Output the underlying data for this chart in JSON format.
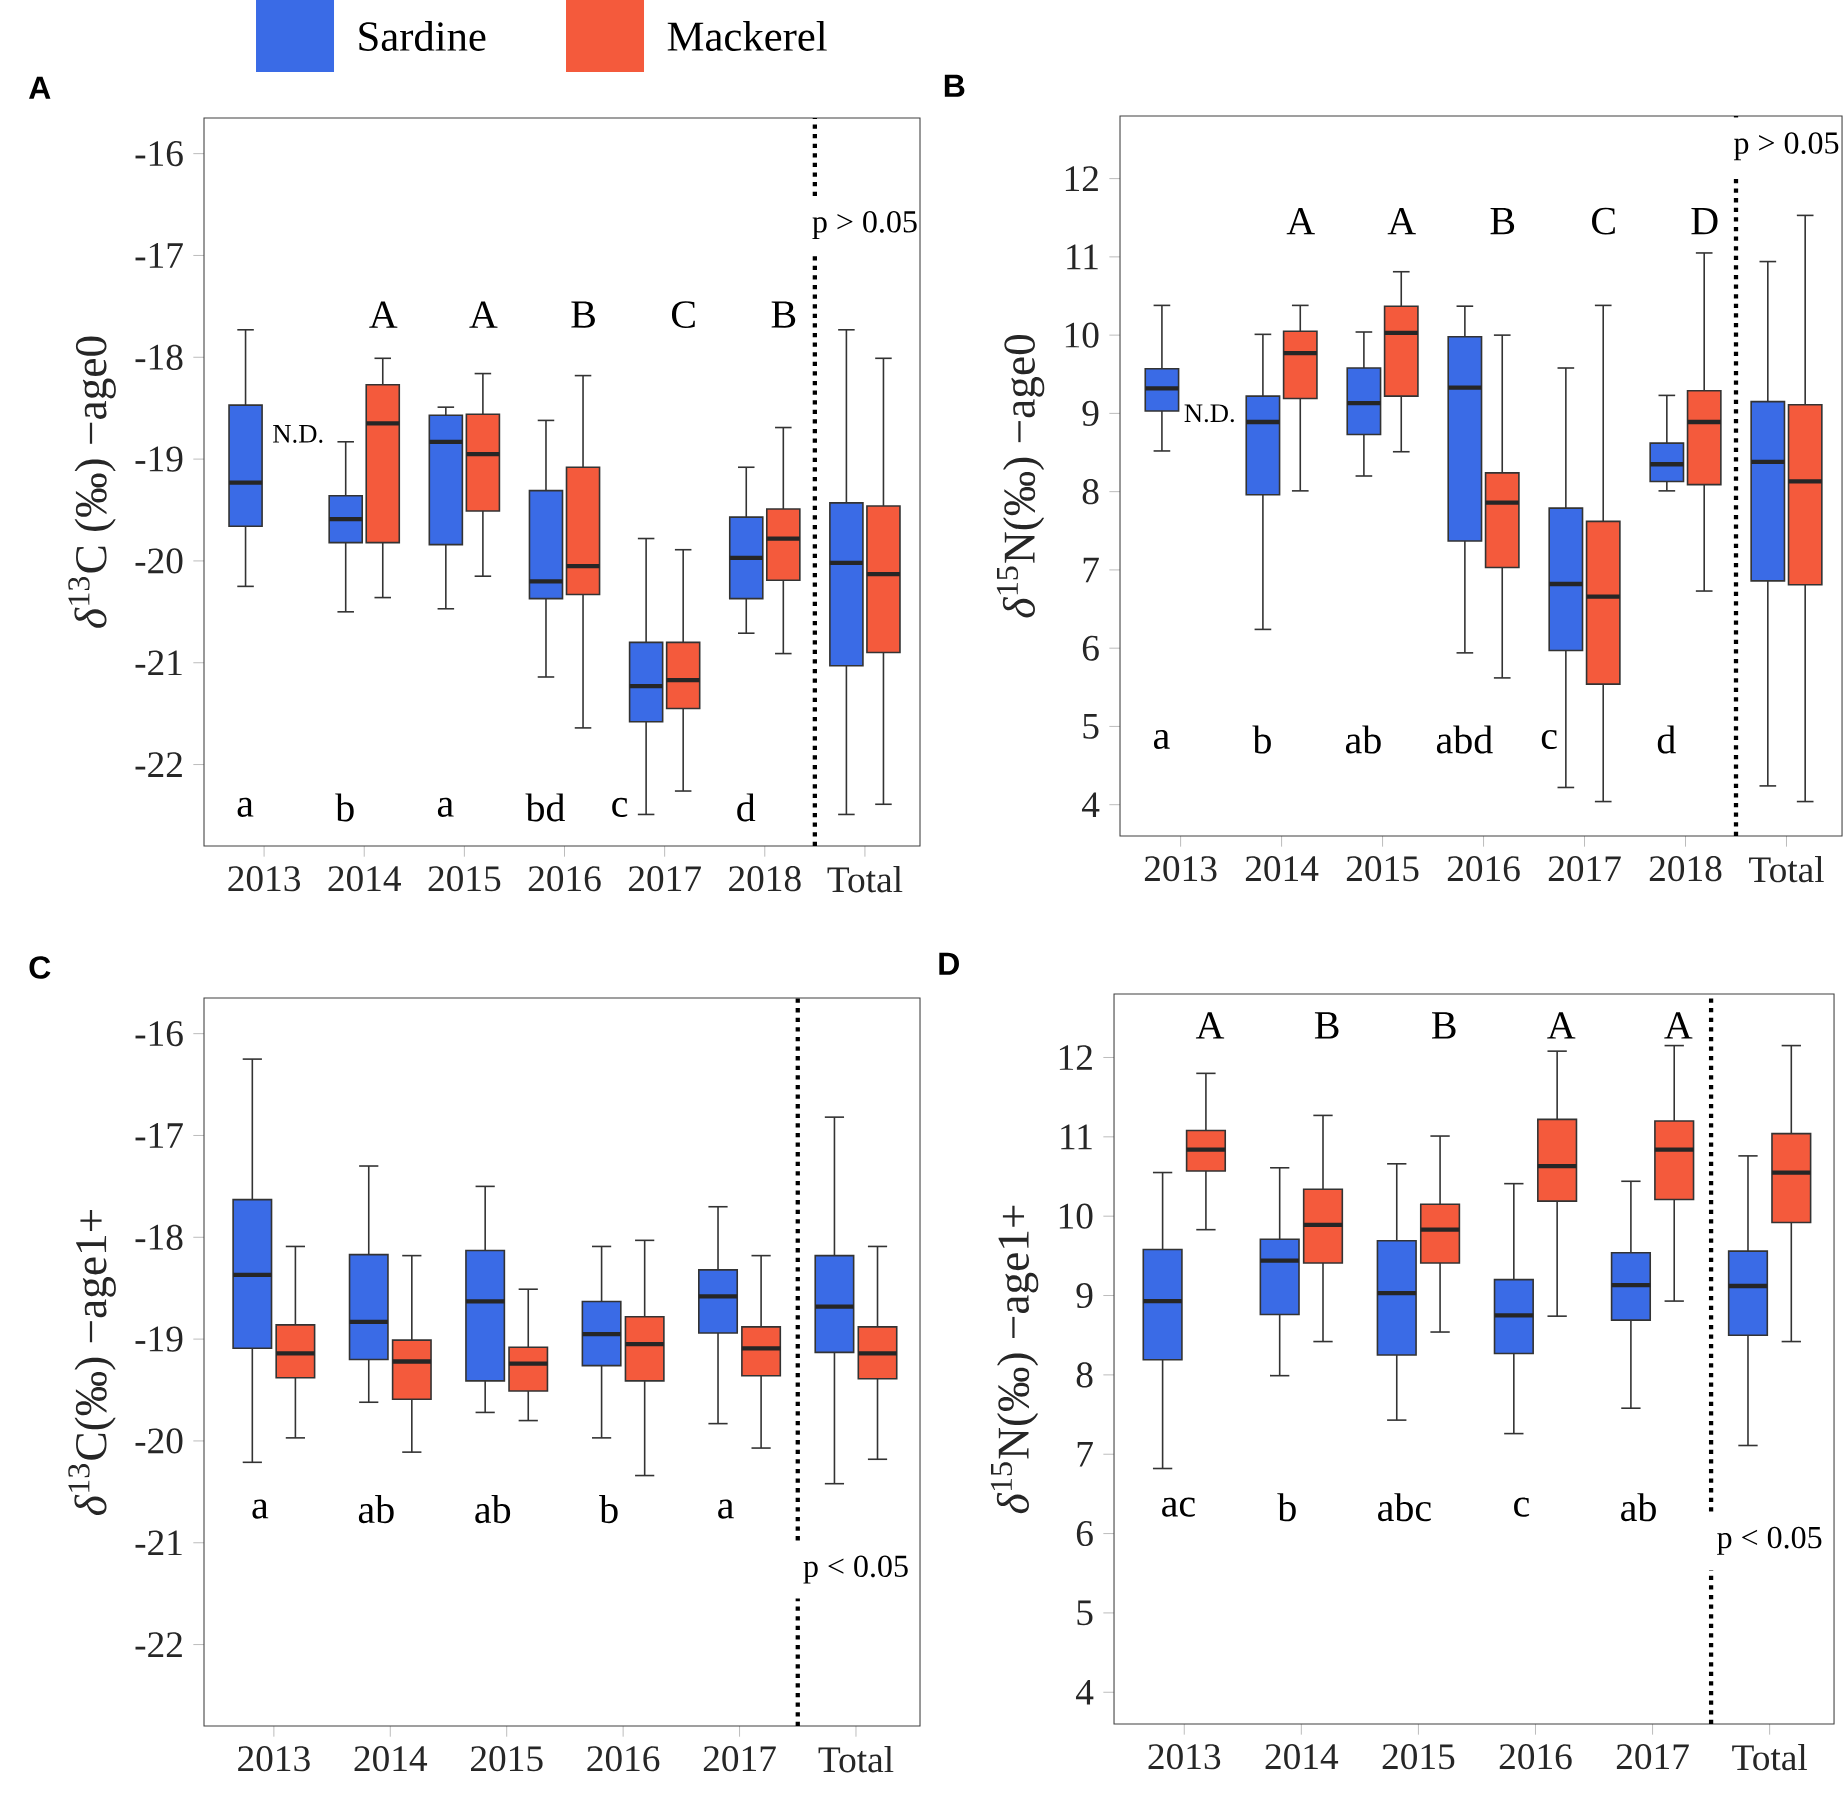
{
  "chart_data": [
    {
      "type": "box",
      "title": "A",
      "ylabel": "*δ*$^{13}$C (‰) −age0",
      "legend": "top",
      "categories": [
        "2013",
        "2014",
        "2015",
        "2016",
        "2017",
        "2018",
        "Total"
      ],
      "ylim": [
        -22.8,
        -15.65
      ],
      "yticks": [
        -16,
        -17,
        -18,
        -19,
        -20,
        -21,
        -22
      ],
      "series": [
        {
          "name": "Sardine",
          "color": "#3a6be6",
          "boxes": [
            {
              "low": -20.25,
              "q1": -19.66,
              "median": -19.23,
              "q3": -18.47,
              "high": -17.73
            },
            {
              "low": -20.5,
              "q1": -19.82,
              "median": -19.59,
              "q3": -19.36,
              "high": -18.83
            },
            {
              "low": -20.47,
              "q1": -19.84,
              "median": -18.83,
              "q3": -18.57,
              "high": -18.49
            },
            {
              "low": -21.14,
              "q1": -20.37,
              "median": -20.2,
              "q3": -19.31,
              "high": -18.62
            },
            {
              "low": -22.49,
              "q1": -21.58,
              "median": -21.23,
              "q3": -20.8,
              "high": -19.78
            },
            {
              "low": -20.71,
              "q1": -20.37,
              "median": -19.97,
              "q3": -19.57,
              "high": -19.08
            },
            {
              "low": -22.49,
              "q1": -21.03,
              "median": -20.02,
              "q3": -19.43,
              "high": -17.73
            }
          ]
        },
        {
          "name": "Mackerel",
          "color": "#f45a3c",
          "boxes": [
            null,
            {
              "low": -20.36,
              "q1": -19.82,
              "median": -18.65,
              "q3": -18.27,
              "high": -18.01
            },
            {
              "low": -20.15,
              "q1": -19.51,
              "median": -18.95,
              "q3": -18.56,
              "high": -18.16
            },
            {
              "low": -21.64,
              "q1": -20.33,
              "median": -20.05,
              "q3": -19.08,
              "high": -18.18
            },
            {
              "low": -22.26,
              "q1": -21.45,
              "median": -21.17,
              "q3": -20.8,
              "high": -19.89
            },
            {
              "low": -20.91,
              "q1": -20.19,
              "median": -19.78,
              "q3": -19.49,
              "high": -18.69
            },
            {
              "low": -22.39,
              "q1": -20.9,
              "median": -20.13,
              "q3": -19.46,
              "high": -18.01
            }
          ]
        }
      ],
      "annotations": [
        "N.D.",
        "A",
        "A",
        "B",
        "C",
        "B",
        "a",
        "b",
        "a",
        "bd",
        "c",
        "d",
        "p > 0.05"
      ]
    },
    {
      "type": "box",
      "title": "B",
      "ylabel": "*δ*$^{15}$N(‰) −age0",
      "categories": [
        "2013",
        "2014",
        "2015",
        "2016",
        "2017",
        "2018",
        "Total"
      ],
      "ylim": [
        3.6,
        12.8
      ],
      "yticks": [
        4,
        5,
        6,
        7,
        8,
        9,
        10,
        11,
        12
      ],
      "series": [
        {
          "color": "#3a6be6",
          "boxes": [
            {
              "low": 8.52,
              "q1": 9.03,
              "median": 9.32,
              "q3": 9.57,
              "high": 10.38
            },
            {
              "low": 6.24,
              "q1": 7.96,
              "median": 8.89,
              "q3": 9.22,
              "high": 10.01
            },
            {
              "low": 8.2,
              "q1": 8.73,
              "median": 9.13,
              "q3": 9.58,
              "high": 10.04
            },
            {
              "low": 5.94,
              "q1": 7.37,
              "median": 9.33,
              "q3": 9.98,
              "high": 10.37
            },
            {
              "low": 4.22,
              "q1": 5.97,
              "median": 6.82,
              "q3": 7.79,
              "high": 9.58
            },
            {
              "low": 8.01,
              "q1": 8.13,
              "median": 8.35,
              "q3": 8.62,
              "high": 9.23
            },
            {
              "low": 4.24,
              "q1": 6.86,
              "median": 8.38,
              "q3": 9.15,
              "high": 10.94
            }
          ]
        },
        {
          "color": "#f45a3c",
          "boxes": [
            null,
            {
              "low": 8.01,
              "q1": 9.19,
              "median": 9.77,
              "q3": 10.05,
              "high": 10.38
            },
            {
              "low": 8.51,
              "q1": 9.22,
              "median": 10.03,
              "q3": 10.37,
              "high": 10.81
            },
            {
              "low": 5.62,
              "q1": 7.03,
              "median": 7.86,
              "q3": 8.24,
              "high": 10.0
            },
            {
              "low": 4.04,
              "q1": 5.54,
              "median": 6.66,
              "q3": 7.62,
              "high": 10.38
            },
            {
              "low": 6.73,
              "q1": 8.09,
              "median": 8.89,
              "q3": 9.29,
              "high": 11.05
            },
            {
              "low": 4.04,
              "q1": 6.81,
              "median": 8.13,
              "q3": 9.11,
              "high": 11.53
            }
          ]
        }
      ],
      "annotations": [
        "N.D.",
        "A",
        "A",
        "B",
        "C",
        "D",
        "a",
        "b",
        "ab",
        "abd",
        "c",
        "d",
        "p > 0.05"
      ]
    },
    {
      "type": "box",
      "title": "C",
      "ylabel": "*δ*$^{13}$C(‰) −age1+",
      "categories": [
        "2013",
        "2014",
        "2015",
        "2016",
        "2017",
        "Total"
      ],
      "ylim": [
        -22.8,
        -15.65
      ],
      "yticks": [
        -16,
        -17,
        -18,
        -19,
        -20,
        -21,
        -22
      ],
      "series": [
        {
          "color": "#3a6be6",
          "boxes": [
            {
              "low": -20.21,
              "q1": -19.09,
              "median": -18.37,
              "q3": -17.63,
              "high": -16.25
            },
            {
              "low": -19.62,
              "q1": -19.2,
              "median": -18.83,
              "q3": -18.17,
              "high": -17.3
            },
            {
              "low": -19.72,
              "q1": -19.41,
              "median": -18.63,
              "q3": -18.13,
              "high": -17.5
            },
            {
              "low": -19.97,
              "q1": -19.26,
              "median": -18.95,
              "q3": -18.63,
              "high": -18.09
            },
            {
              "low": -19.83,
              "q1": -18.94,
              "median": -18.58,
              "q3": -18.32,
              "high": -17.7
            },
            {
              "low": -20.42,
              "q1": -19.13,
              "median": -18.68,
              "q3": -18.18,
              "high": -16.82
            }
          ]
        },
        {
          "color": "#f45a3c",
          "boxes": [
            {
              "low": -19.97,
              "q1": -19.38,
              "median": -19.14,
              "q3": -18.86,
              "high": -18.09
            },
            {
              "low": -20.11,
              "q1": -19.59,
              "median": -19.22,
              "q3": -19.01,
              "high": -18.18
            },
            {
              "low": -19.8,
              "q1": -19.51,
              "median": -19.24,
              "q3": -19.08,
              "high": -18.51
            },
            {
              "low": -20.34,
              "q1": -19.41,
              "median": -19.05,
              "q3": -18.78,
              "high": -18.03
            },
            {
              "low": -20.07,
              "q1": -19.36,
              "median": -19.09,
              "q3": -18.88,
              "high": -18.18
            },
            {
              "low": -20.18,
              "q1": -19.39,
              "median": -19.14,
              "q3": -18.88,
              "high": -18.09
            }
          ]
        }
      ],
      "annotations": [
        "a",
        "ab",
        "ab",
        "b",
        "a",
        "p < 0.05"
      ]
    },
    {
      "type": "box",
      "title": "D",
      "ylabel": "*δ*$^{15}$N(‰) −age1+",
      "categories": [
        "2013",
        "2014",
        "2015",
        "2016",
        "2017",
        "Total"
      ],
      "ylim": [
        3.6,
        12.8
      ],
      "yticks": [
        4,
        5,
        6,
        7,
        8,
        9,
        10,
        11,
        12
      ],
      "series": [
        {
          "color": "#3a6be6",
          "boxes": [
            {
              "low": 6.82,
              "q1": 8.19,
              "median": 8.93,
              "q3": 9.58,
              "high": 10.55
            },
            {
              "low": 7.99,
              "q1": 8.76,
              "median": 9.44,
              "q3": 9.71,
              "high": 10.61
            },
            {
              "low": 7.43,
              "q1": 8.25,
              "median": 9.03,
              "q3": 9.69,
              "high": 10.66
            },
            {
              "low": 7.26,
              "q1": 8.27,
              "median": 8.75,
              "q3": 9.2,
              "high": 10.41
            },
            {
              "low": 7.58,
              "q1": 8.69,
              "median": 9.13,
              "q3": 9.54,
              "high": 10.44
            },
            {
              "low": 7.11,
              "q1": 8.5,
              "median": 9.12,
              "q3": 9.56,
              "high": 10.76
            }
          ]
        },
        {
          "color": "#f45a3c",
          "boxes": [
            {
              "low": 9.83,
              "q1": 10.57,
              "median": 10.84,
              "q3": 11.08,
              "high": 11.8
            },
            {
              "low": 8.42,
              "q1": 9.41,
              "median": 9.89,
              "q3": 10.34,
              "high": 11.27
            },
            {
              "low": 8.54,
              "q1": 9.41,
              "median": 9.83,
              "q3": 10.15,
              "high": 11.01
            },
            {
              "low": 8.74,
              "q1": 10.19,
              "median": 10.63,
              "q3": 11.22,
              "high": 12.08
            },
            {
              "low": 8.93,
              "q1": 10.21,
              "median": 10.84,
              "q3": 11.2,
              "high": 12.15
            },
            {
              "low": 8.42,
              "q1": 9.92,
              "median": 10.55,
              "q3": 11.04,
              "high": 12.15
            }
          ]
        }
      ],
      "annotations": [
        "A",
        "B",
        "B",
        "A",
        "A",
        "ac",
        "b",
        "abc",
        "c",
        "ab",
        "p < 0.05"
      ]
    }
  ]
}
